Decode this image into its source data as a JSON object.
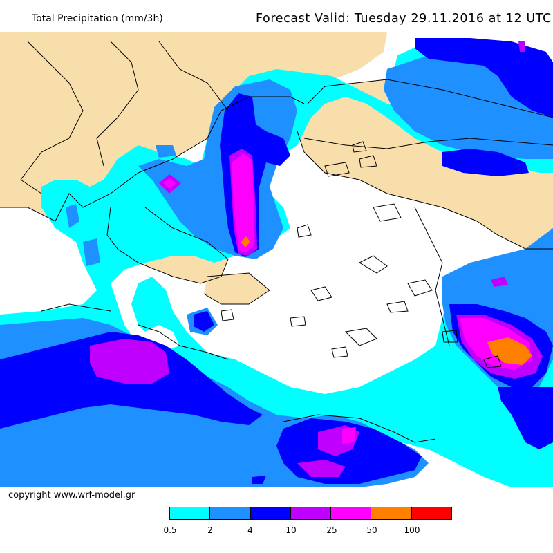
{
  "header": {
    "title": "Total Precipitation (mm/3h)",
    "forecast": "Forecast Valid:  Tuesday 29.11.2016 at 12 UTC"
  },
  "footer": {
    "copyright": "copyright www.wrf-model.gr"
  },
  "legend": {
    "colors": [
      "#00ffff",
      "#1e90ff",
      "#0000ff",
      "#c000ff",
      "#ff00ff",
      "#ff8000",
      "#ff0000"
    ],
    "labels": [
      "0.5",
      "2",
      "4",
      "10",
      "25",
      "50",
      "100"
    ]
  },
  "map_colors": {
    "sea_dry": "#ffffff",
    "land_dry": "#f8deab",
    "border": "#000000"
  }
}
